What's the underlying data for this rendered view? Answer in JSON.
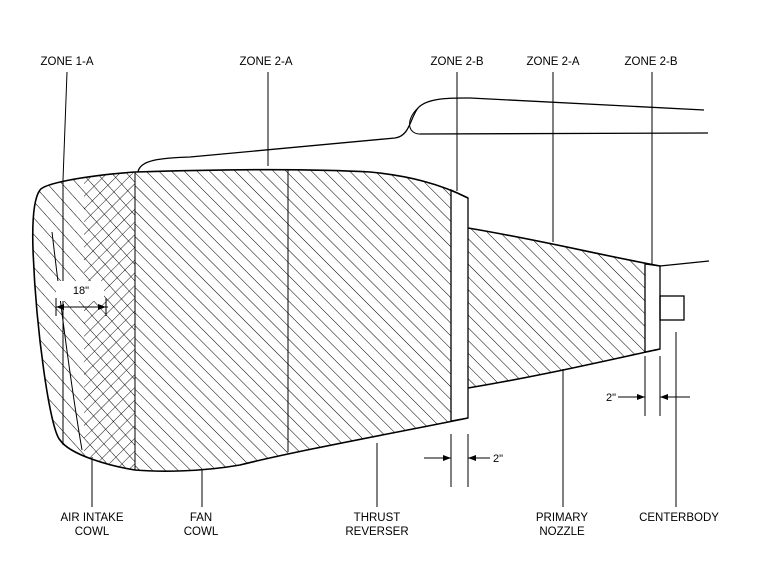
{
  "zones_top": {
    "zone1a": "ZONE 1-A",
    "zone2a_fan": "ZONE 2-A",
    "zone2b_rev": "ZONE 2-B",
    "zone2a_noz": "ZONE 2-A",
    "zone2b_cb": "ZONE 2-B"
  },
  "components": {
    "air_intake_l1": "AIR INTAKE",
    "air_intake_l2": "COWL",
    "fan_l1": "FAN",
    "fan_l2": "COWL",
    "thrust_l1": "THRUST",
    "thrust_l2": "REVERSER",
    "primary_l1": "PRIMARY",
    "primary_l2": "NOZZLE",
    "centerbody": "CENTERBODY"
  },
  "dimensions": {
    "intake": "18\"",
    "reverser_band": "2\"",
    "nozzle_band": "2\""
  }
}
